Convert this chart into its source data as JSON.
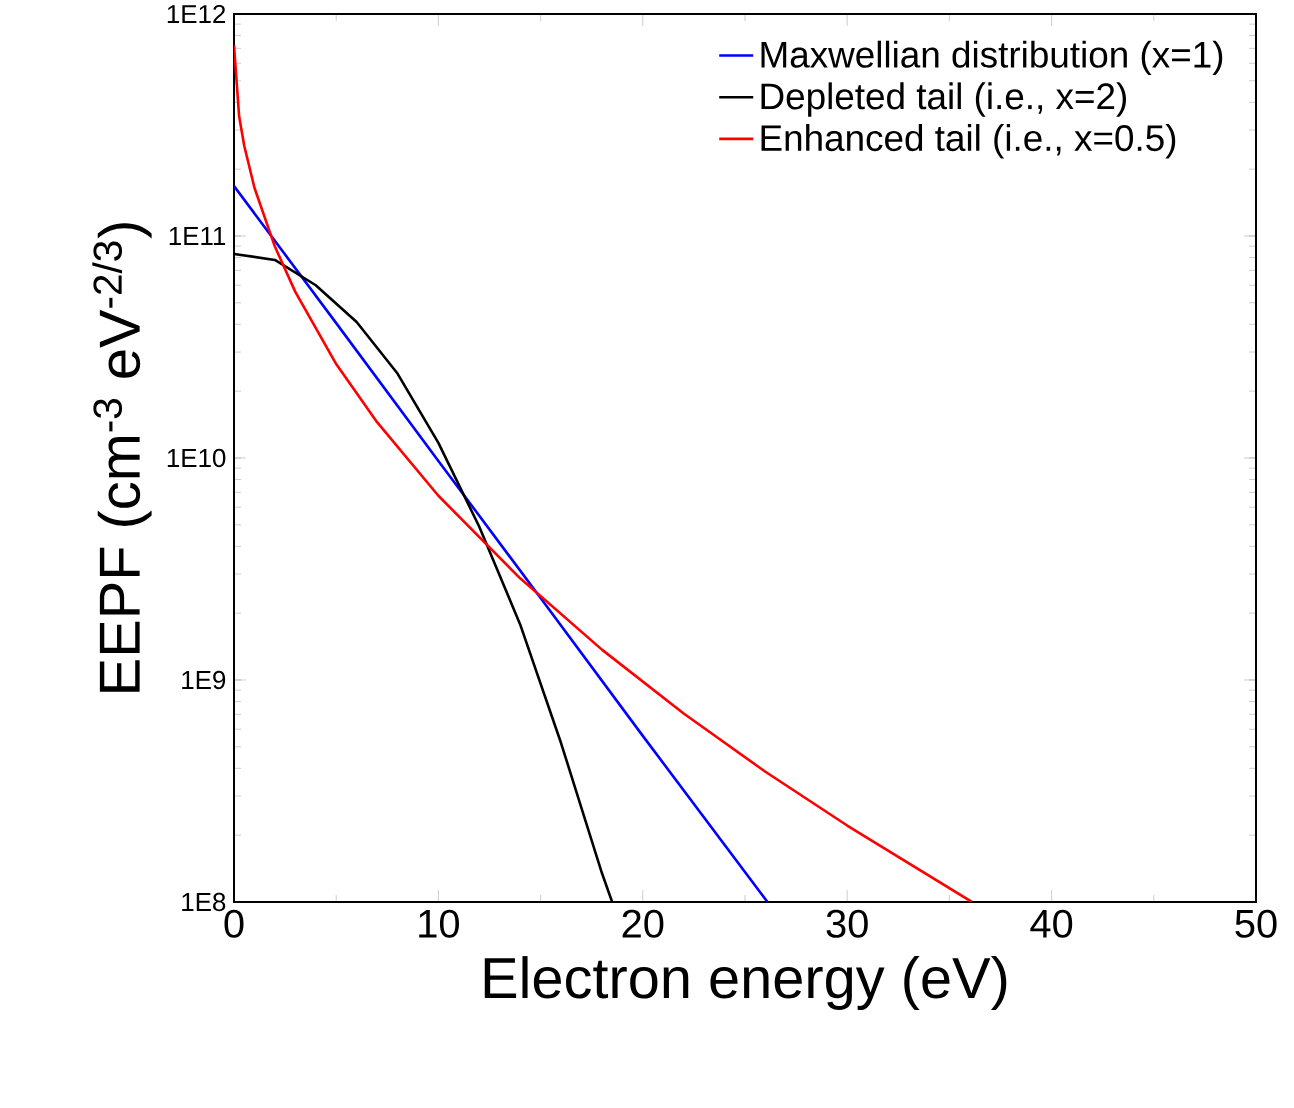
{
  "chart_data": {
    "type": "line",
    "xlabel": "Electron energy (eV)",
    "ylabel": "EEPF (cm$^{-3}$ eV$^{-2/3}$)",
    "log": "y",
    "xlim": [
      0,
      50
    ],
    "xticks": [
      0,
      10,
      20,
      30,
      40,
      50
    ],
    "ylim": [
      100000000.0,
      1000000000000.0
    ],
    "yticks": [
      {
        "value": 100000000.0,
        "label": "1E8"
      },
      {
        "value": 1000000000.0,
        "label": "1E9"
      },
      {
        "value": 10000000000.0,
        "label": "1E10"
      },
      {
        "value": 100000000000.0,
        "label": "1E11"
      },
      {
        "value": 1000000000000.0,
        "label": "1E12"
      }
    ],
    "legend": "top right",
    "line_style": "solid",
    "marker": "none",
    "series": [
      {
        "name": "Maxwellian distribution (x=1)",
        "color": "#0000ff",
        "x": [
          0,
          5,
          10,
          15,
          20,
          26.1
        ],
        "values": [
          168000000000.0,
          40500000000.0,
          9700000000.0,
          2340000000.0,
          560000000.0,
          100000000.0
        ]
      },
      {
        "name": "Depleted tail (i.e., x=2)",
        "color": "#000000",
        "x": [
          0,
          2,
          4,
          6,
          8,
          10,
          12,
          14,
          16,
          18,
          18.5
        ],
        "values": [
          83000000000.0,
          78000000000.0,
          60000000000.0,
          41000000000.0,
          24000000000.0,
          11700000000.0,
          4900000000.0,
          1780000000.0,
          520000000.0,
          135000000.0,
          100000000.0
        ]
      },
      {
        "name": "Enhanced tail (i.e., x=0.5)",
        "color": "#ff0000",
        "x": [
          0,
          0.25,
          0.5,
          1,
          2,
          3,
          5,
          7,
          10,
          14,
          18,
          22,
          26,
          30,
          36.1
        ],
        "values": [
          724000000000.0,
          346000000000.0,
          255000000000.0,
          165000000000.0,
          89600000000.0,
          56000000000.0,
          26500000000.0,
          14500000000.0,
          6760000000.0,
          2870000000.0,
          1370000000.0,
          706000000.0,
          386000000.0,
          221000000.0,
          100000000.0
        ]
      }
    ]
  }
}
